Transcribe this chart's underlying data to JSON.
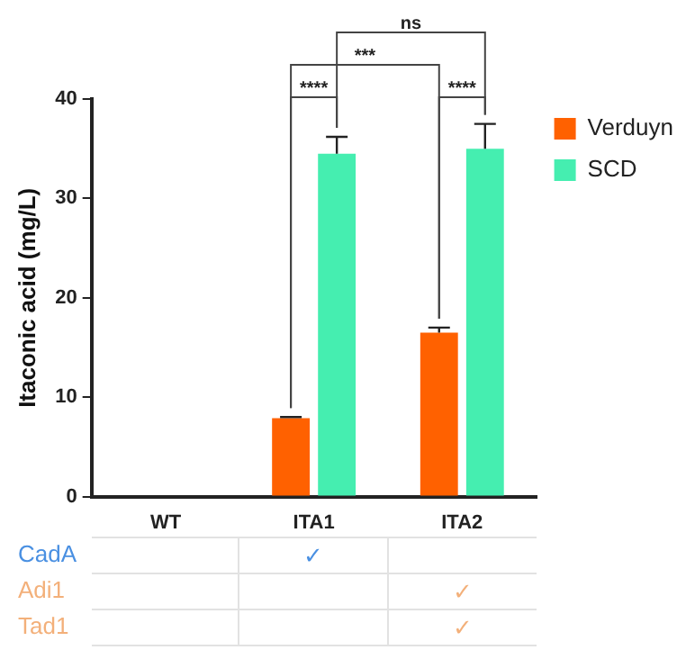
{
  "chart_data": {
    "type": "bar",
    "ylabel": "Itaconic acid (mg/L)",
    "categories": [
      "WT",
      "ITA1",
      "ITA2"
    ],
    "series": [
      {
        "name": "Verduyn",
        "color": "#ff6100",
        "values": [
          0,
          7.9,
          16.5
        ],
        "errors": [
          null,
          0.1,
          0.5
        ]
      },
      {
        "name": "SCD",
        "color": "#45eeb0",
        "values": [
          0,
          34.5,
          35.0
        ],
        "errors": [
          null,
          1.7,
          2.5
        ]
      }
    ],
    "ylim": [
      0,
      40
    ],
    "yticks": [
      0,
      10,
      20,
      30,
      40
    ],
    "grid": false,
    "legend": "top right",
    "annotations": [
      "****",
      "****",
      "***",
      "ns",
      "CadA",
      "✓",
      "Adi1",
      "✓",
      "Tad1",
      "✓"
    ]
  }
}
